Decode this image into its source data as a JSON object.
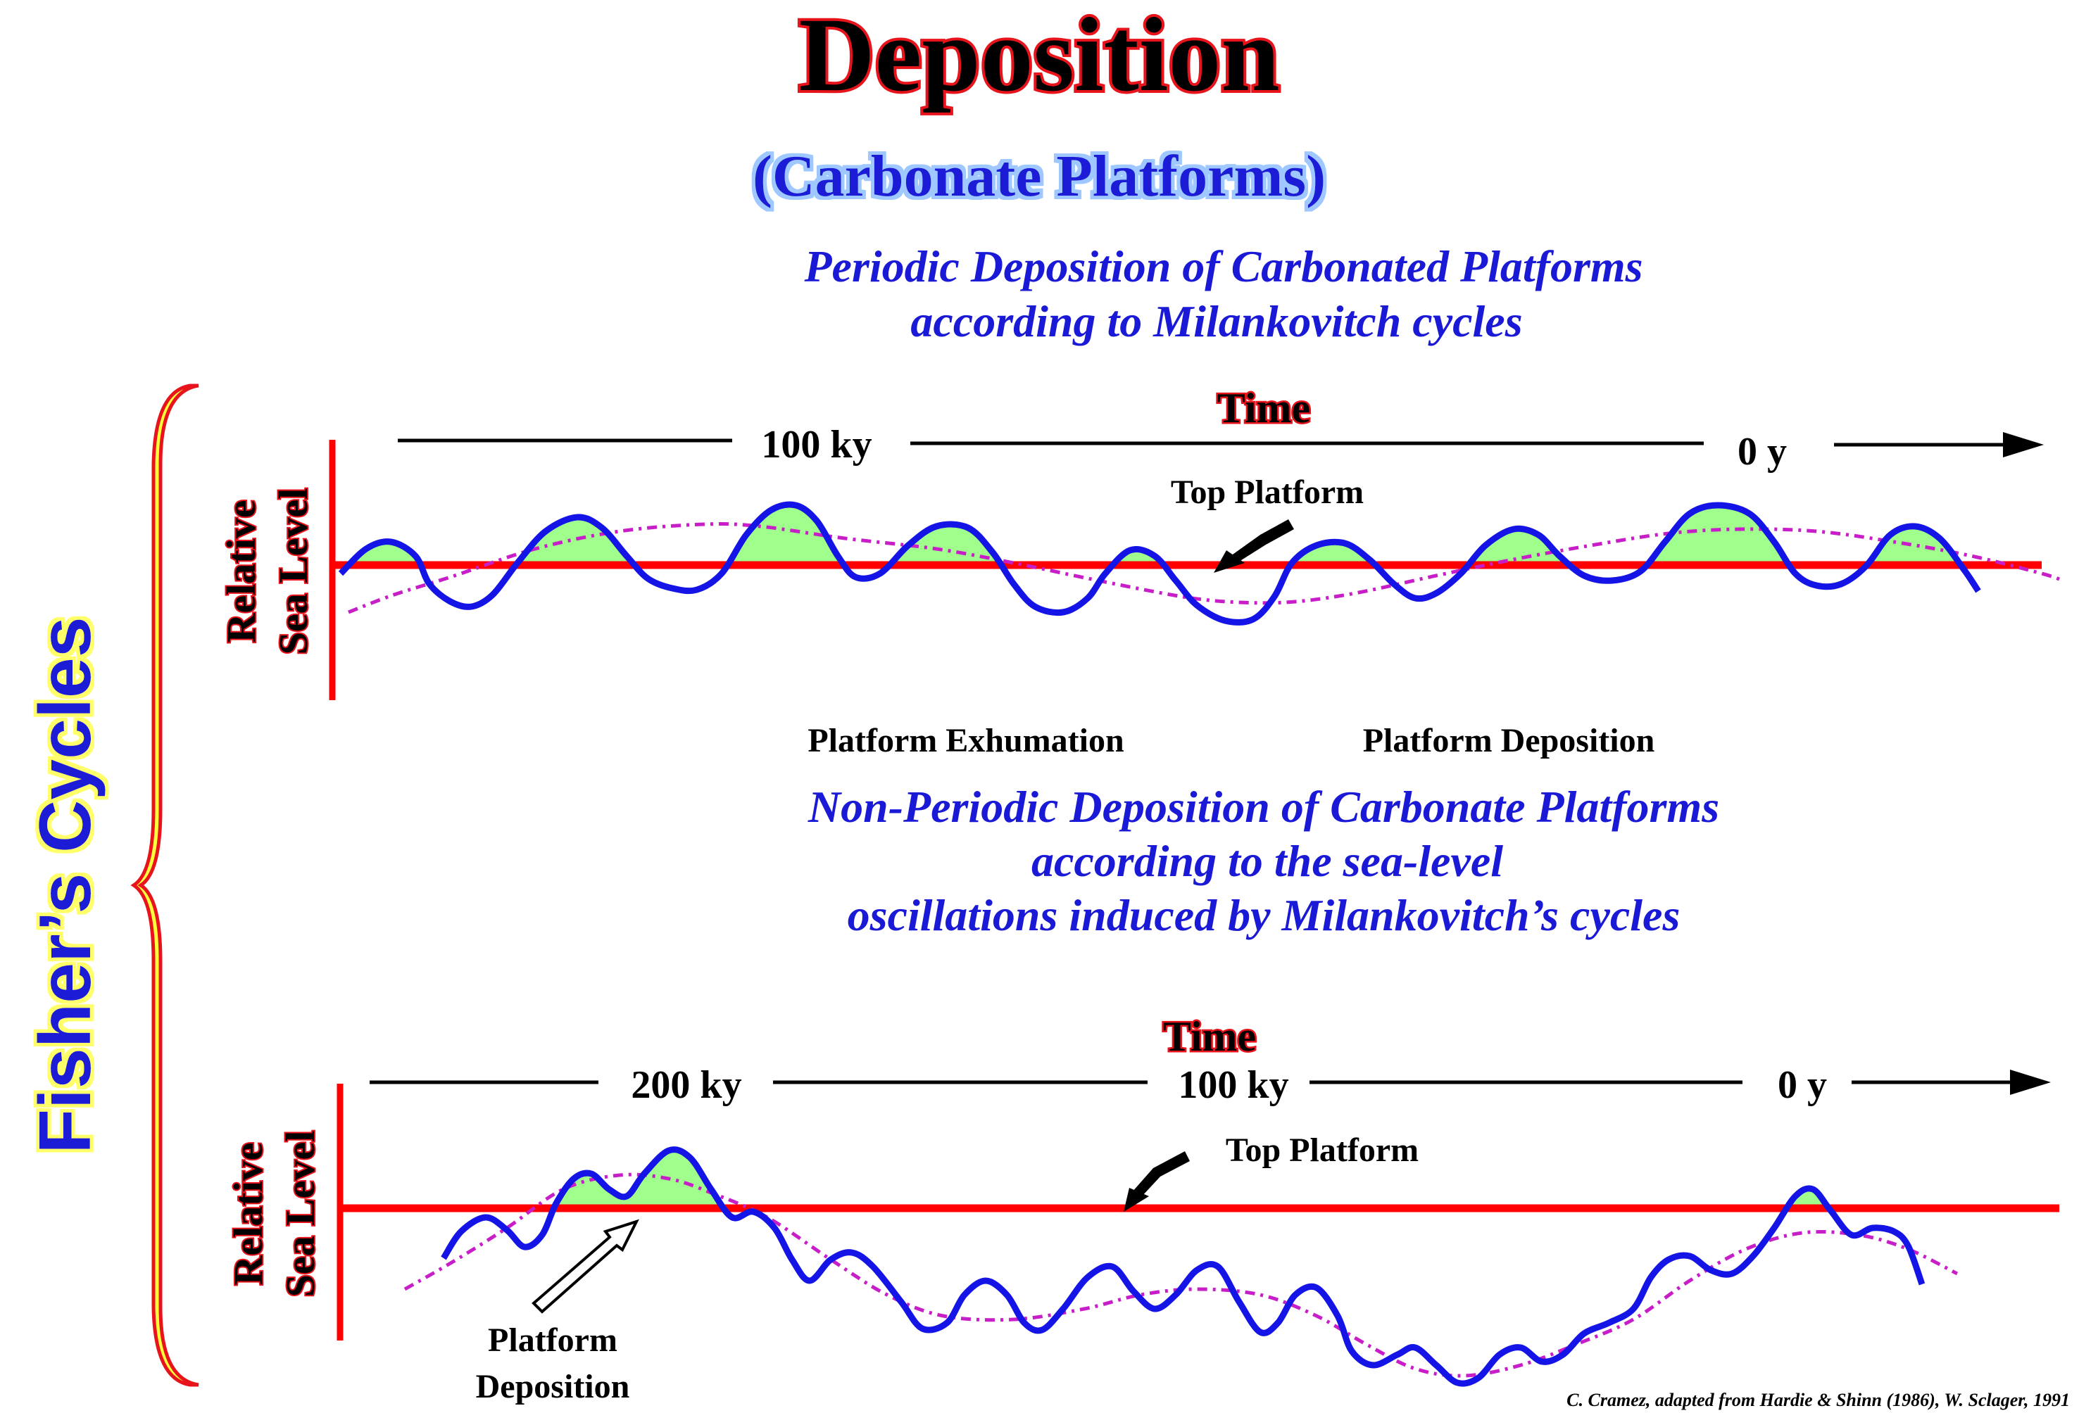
{
  "title": "Deposition",
  "subtitle": "(Carbonate Platforms)",
  "side_label": "Fisher’s Cycles",
  "top_panel": {
    "heading_line1": "Periodic Deposition of Carbonated Platforms",
    "heading_line2": "according to Milankovitch cycles",
    "time_label": "Time",
    "tick_left": "100 ky",
    "tick_right": "0 y",
    "y_label_line1": "Relative",
    "y_label_line2": "Sea Level",
    "top_platform_label": "Top Platform",
    "exhumation_label": "Platform Exhumation",
    "deposition_label": "Platform Deposition"
  },
  "bottom_panel": {
    "heading_line1": "Non-Periodic Deposition of Carbonate Platforms",
    "heading_line2": "according to the sea-level",
    "heading_line3": "oscillations induced by Milankovitch’s cycles",
    "time_label": "Time",
    "tick_left": "200 ky",
    "tick_mid": "100 ky",
    "tick_right": "0 y",
    "y_label_line1": "Relative",
    "y_label_line2": "Sea Level",
    "top_platform_label": "Top Platform",
    "deposition_label_line1": "Platform",
    "deposition_label_line2": "Deposition"
  },
  "credit": "C. Cramez, adapted from  Hardie & Shinn (1986), W. Sclager, 1991",
  "colors": {
    "title_red": "#e8141c",
    "title_fill": "#000000",
    "subtitle_blue": "#1a1ad6",
    "heading_blue": "#1a1ad6",
    "curve_blue": "#1414e6",
    "platform_red": "#ff0000",
    "deposit_green": "#a0ff8c",
    "trend_magenta": "#c81ec8"
  }
}
